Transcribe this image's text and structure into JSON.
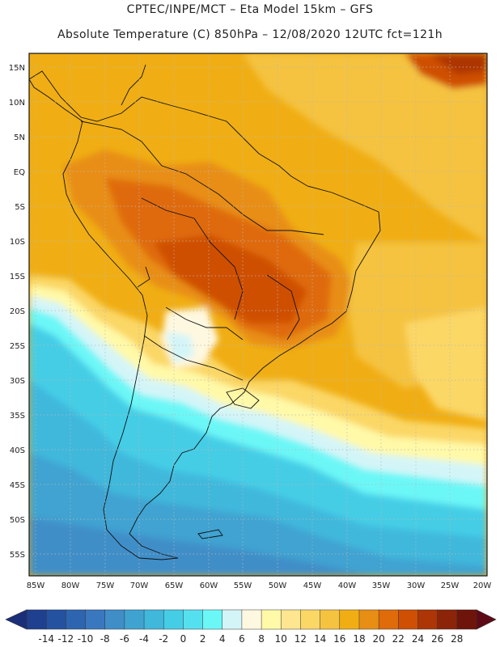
{
  "header": {
    "line1": "CPTEC/INPE/MCT –   Eta Model 15km – GFS",
    "line2": "Absolute Temperature (C) 850hPa – 12/08/2020 12UTC fct=121h"
  },
  "map": {
    "lat_labels": [
      "15N",
      "10N",
      "5N",
      "EQ",
      "5S",
      "10S",
      "15S",
      "20S",
      "25S",
      "30S",
      "35S",
      "40S",
      "45S",
      "50S",
      "55S"
    ],
    "lon_labels": [
      "85W",
      "80W",
      "75W",
      "70W",
      "65W",
      "60W",
      "55W",
      "50W",
      "45W",
      "40W",
      "35W",
      "30W",
      "25W",
      "20W"
    ]
  },
  "colorbar": {
    "labels": [
      "-14",
      "-12",
      "-10",
      "-8",
      "-6",
      "-4",
      "-2",
      "0",
      "2",
      "4",
      "6",
      "8",
      "10",
      "12",
      "14",
      "16",
      "18",
      "20",
      "22",
      "24",
      "26",
      "28"
    ],
    "colors": [
      "#1f3f8f",
      "#2552a0",
      "#2e65b0",
      "#3978be",
      "#3f8ec8",
      "#3fa3d1",
      "#3fb8dc",
      "#45cde6",
      "#55e0f0",
      "#6cf7f7",
      "#d4f5f8",
      "#fff8e0",
      "#fff9a8",
      "#fde68f",
      "#fbd766",
      "#f5c340",
      "#f0ae14",
      "#e88e14",
      "#df6b0a",
      "#cf4f05",
      "#ad3506",
      "#8c2409",
      "#6e140b"
    ],
    "min_arrow_color": "#1a2f78",
    "max_arrow_color": "#5e0a16"
  }
}
